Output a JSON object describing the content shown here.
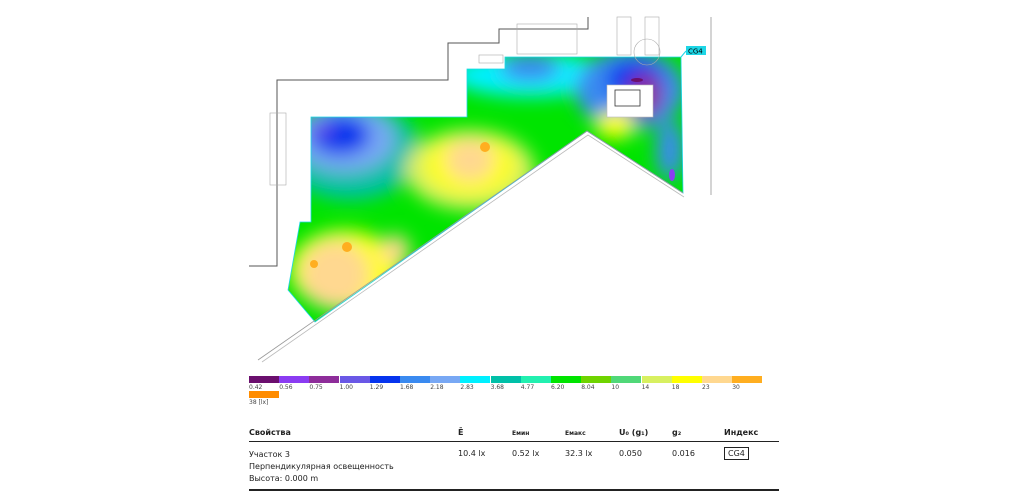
{
  "plan": {
    "index_tag": "CG4",
    "colors": {
      "wall": "#555555",
      "tag": "#1ed6e6"
    }
  },
  "legend": {
    "unit": "[lx]",
    "steps": [
      {
        "label": "0.42",
        "color": "#6b0f6e"
      },
      {
        "label": "0.56",
        "color": "#8b3cf2"
      },
      {
        "label": "0.75",
        "color": "#8e2d9a"
      },
      {
        "label": "1.00",
        "color": "#6a58e6"
      },
      {
        "label": "1.29",
        "color": "#0634ee"
      },
      {
        "label": "1.68",
        "color": "#3a8af0"
      },
      {
        "label": "2.18",
        "color": "#78a8f4"
      },
      {
        "label": "2.83",
        "color": "#00f0ff"
      },
      {
        "label": "3.68",
        "color": "#00c0a8"
      },
      {
        "label": "4.77",
        "color": "#22f0b0"
      },
      {
        "label": "6.20",
        "color": "#00e400"
      },
      {
        "label": "8.04",
        "color": "#6fd400"
      },
      {
        "label": "10",
        "color": "#50d878"
      },
      {
        "label": "14",
        "color": "#d8f060"
      },
      {
        "label": "18",
        "color": "#ffff00"
      },
      {
        "label": "23",
        "color": "#ffd890"
      },
      {
        "label": "30",
        "color": "#ffae20"
      },
      {
        "label": "38 [lx]",
        "color": "#ff8c00"
      }
    ]
  },
  "table": {
    "headers": [
      "Свойства",
      "Ē",
      "Eмин",
      "Eмакс",
      "U₀ (g₁)",
      "g₂",
      "Индекс"
    ],
    "row": {
      "name": "Участок 3",
      "type": "Перпендикулярная освещенность",
      "height": "Высота: 0.000 m",
      "e_avg": "10.4 lx",
      "e_min": "0.52 lx",
      "e_max": "32.3 lx",
      "u0": "0.050",
      "g2": "0.016",
      "index": "CG4"
    }
  }
}
